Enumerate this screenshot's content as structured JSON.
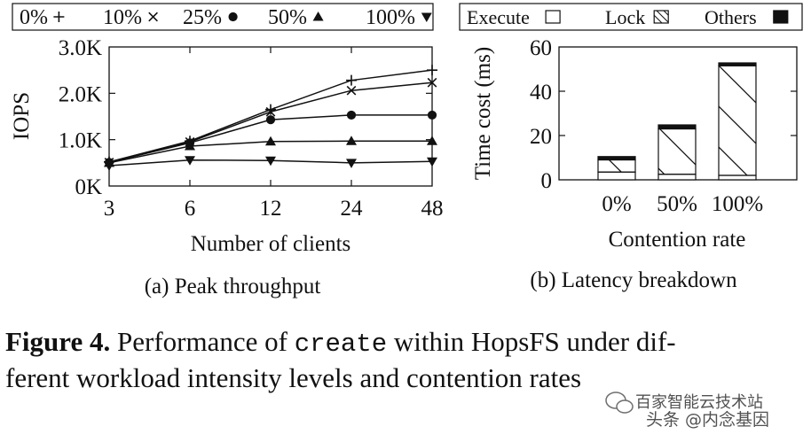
{
  "chart_data": [
    {
      "type": "line",
      "title": "(a) Peak throughput",
      "xlabel": "Number of clients",
      "ylabel": "IOPS",
      "x": [
        "3",
        "6",
        "12",
        "24",
        "48"
      ],
      "yticks": [
        "0K",
        "1.0K",
        "2.0K",
        "3.0K"
      ],
      "ylim": [
        0,
        3000
      ],
      "legend_position": "top",
      "series": [
        {
          "name": "0%",
          "marker": "plus",
          "values": [
            520,
            970,
            1650,
            2280,
            2500
          ]
        },
        {
          "name": "10%",
          "marker": "cross",
          "values": [
            510,
            950,
            1600,
            2060,
            2230
          ]
        },
        {
          "name": "25%",
          "marker": "circle",
          "values": [
            510,
            930,
            1430,
            1530,
            1530
          ]
        },
        {
          "name": "50%",
          "marker": "triangle-up",
          "values": [
            500,
            860,
            960,
            970,
            970
          ]
        },
        {
          "name": "100%",
          "marker": "triangle-down",
          "values": [
            440,
            560,
            550,
            500,
            530
          ]
        }
      ]
    },
    {
      "type": "bar",
      "stacked": true,
      "title": "(b) Latency breakdown",
      "xlabel": "Contention rate",
      "ylabel": "Time cost (ms)",
      "categories": [
        "0%",
        "50%",
        "100%"
      ],
      "yticks": [
        "0",
        "20",
        "40",
        "60"
      ],
      "ylim": [
        0,
        60
      ],
      "legend_position": "top",
      "series": [
        {
          "name": "Execute",
          "pattern": "empty",
          "values": [
            3.5,
            2.5,
            2
          ]
        },
        {
          "name": "Lock",
          "pattern": "hatched",
          "values": [
            5.5,
            20.5,
            49.5
          ]
        },
        {
          "name": "Others",
          "pattern": "solid",
          "values": [
            1.5,
            1.8,
            1.3
          ]
        }
      ]
    }
  ],
  "caption": {
    "label": "Figure 4.",
    "text_before": " Performance of ",
    "code": "create",
    "text_after_line1": " within HopsFS under dif-",
    "line2": "ferent workload intensity levels and contention rates"
  },
  "watermark": {
    "channel": "百家智能云技术站",
    "handle": "头条 @内念基因"
  }
}
